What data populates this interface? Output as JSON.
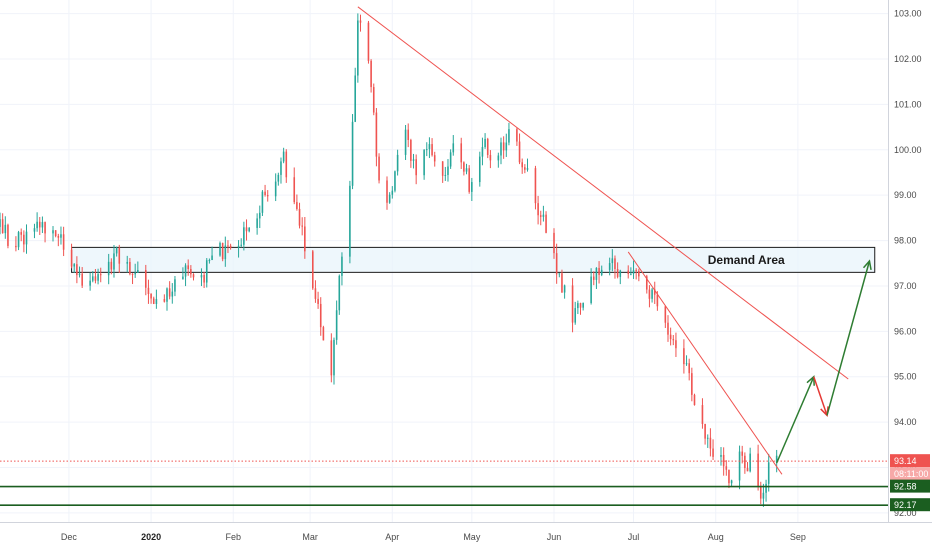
{
  "chart_data": {
    "type": "candlestick",
    "y_axis": {
      "range": [
        91.8,
        103.3
      ],
      "ticks": [
        "92.00",
        "93.00",
        "94.00",
        "95.00",
        "96.00",
        "97.00",
        "98.00",
        "99.00",
        "100.00",
        "101.00",
        "102.00",
        "103.00"
      ],
      "tick_values": [
        92,
        93,
        94,
        95,
        96,
        97,
        98,
        99,
        100,
        101,
        102,
        103
      ]
    },
    "x_axis": {
      "labels": [
        "Dec",
        "2020",
        "Feb",
        "Mar",
        "Apr",
        "May",
        "Jun",
        "Jul",
        "Aug",
        "Sep"
      ],
      "label_dates": [
        "2019-12-01",
        "2020-01-01",
        "2020-02-01",
        "2020-03-01",
        "2020-04-01",
        "2020-05-01",
        "2020-06-01",
        "2020-07-01",
        "2020-08-01",
        "2020-09-01"
      ],
      "range": [
        "2019-11-05",
        "2020-10-05"
      ]
    },
    "price_path": [
      [
        "2019-11-05",
        98.3
      ],
      [
        "2019-11-10",
        97.9
      ],
      [
        "2019-11-18",
        98.3
      ],
      [
        "2019-11-25",
        98.4
      ],
      [
        "2019-12-01",
        97.7
      ],
      [
        "2019-12-07",
        96.8
      ],
      [
        "2019-12-14",
        97.4
      ],
      [
        "2019-12-20",
        97.7
      ],
      [
        "2019-12-27",
        97.3
      ],
      [
        "2020-01-01",
        96.5
      ],
      [
        "2020-01-07",
        96.8
      ],
      [
        "2020-01-14",
        97.4
      ],
      [
        "2020-01-21",
        97.3
      ],
      [
        "2020-01-28",
        97.8
      ],
      [
        "2020-02-03",
        98.0
      ],
      [
        "2020-02-10",
        98.7
      ],
      [
        "2020-02-17",
        99.3
      ],
      [
        "2020-02-20",
        99.8
      ],
      [
        "2020-02-27",
        98.2
      ],
      [
        "2020-03-01",
        97.2
      ],
      [
        "2020-03-05",
        96.2
      ],
      [
        "2020-03-09",
        95.2
      ],
      [
        "2020-03-13",
        97.8
      ],
      [
        "2020-03-16",
        99.3
      ],
      [
        "2020-03-19",
        102.8
      ],
      [
        "2020-03-23",
        102.0
      ],
      [
        "2020-03-27",
        99.2
      ],
      [
        "2020-03-31",
        98.8
      ],
      [
        "2020-04-05",
        100.4
      ],
      [
        "2020-04-10",
        99.6
      ],
      [
        "2020-04-15",
        100.0
      ],
      [
        "2020-04-20",
        99.3
      ],
      [
        "2020-04-25",
        100.2
      ],
      [
        "2020-04-30",
        99.2
      ],
      [
        "2020-05-05",
        100.2
      ],
      [
        "2020-05-10",
        99.7
      ],
      [
        "2020-05-15",
        100.4
      ],
      [
        "2020-05-20",
        99.7
      ],
      [
        "2020-05-25",
        98.9
      ],
      [
        "2020-05-30",
        98.2
      ],
      [
        "2020-06-03",
        97.2
      ],
      [
        "2020-06-08",
        96.2
      ],
      [
        "2020-06-12",
        96.8
      ],
      [
        "2020-06-17",
        97.3
      ],
      [
        "2020-06-22",
        97.5
      ],
      [
        "2020-06-27",
        97.3
      ],
      [
        "2020-07-01",
        97.2
      ],
      [
        "2020-07-07",
        96.8
      ],
      [
        "2020-07-14",
        96.1
      ],
      [
        "2020-07-21",
        95.2
      ],
      [
        "2020-07-28",
        93.7
      ],
      [
        "2020-08-02",
        93.3
      ],
      [
        "2020-08-06",
        92.8
      ],
      [
        "2020-08-10",
        93.2
      ],
      [
        "2020-08-14",
        93.1
      ],
      [
        "2020-08-18",
        92.3
      ],
      [
        "2020-08-21",
        93.1
      ],
      [
        "2020-08-24",
        93.1
      ]
    ],
    "horizontal_lines": [
      {
        "price": 92.58,
        "label": "92.58",
        "color": "#1b5e20"
      },
      {
        "price": 92.17,
        "label": "92.17",
        "color": "#1b5e20"
      }
    ],
    "current_price": {
      "price": 93.14,
      "label": "93.14",
      "countdown": "08:11:00",
      "color": "#ef5350"
    },
    "zone": {
      "price_top": 97.85,
      "price_bottom": 97.3,
      "date_start": "2019-12-02",
      "date_end": "2020-09-30",
      "label": "Demand Area"
    },
    "trendlines": [
      {
        "from": [
          "2020-03-19",
          103.15
        ],
        "to": [
          "2020-09-20",
          94.95
        ],
        "color": "#ef5350"
      },
      {
        "from": [
          "2020-06-29",
          97.75
        ],
        "to": [
          "2020-08-26",
          92.85
        ],
        "color": "#ef5350"
      }
    ],
    "projection_arrows": [
      {
        "from": [
          "2020-08-24",
          93.1
        ],
        "to": [
          "2020-09-07",
          95.0
        ],
        "color": "#2e7d32"
      },
      {
        "from": [
          "2020-09-07",
          95.0
        ],
        "to": [
          "2020-09-12",
          94.15
        ],
        "color": "#e53935"
      },
      {
        "from": [
          "2020-09-12",
          94.15
        ],
        "to": [
          "2020-09-28",
          97.55
        ],
        "color": "#2e7d32"
      }
    ],
    "colors": {
      "up": "#26a69a",
      "down": "#ef5350",
      "grid": "#f0f3fa",
      "zone_fill": "#e8f4fb",
      "zone_stroke": "#1a1a1a"
    }
  }
}
